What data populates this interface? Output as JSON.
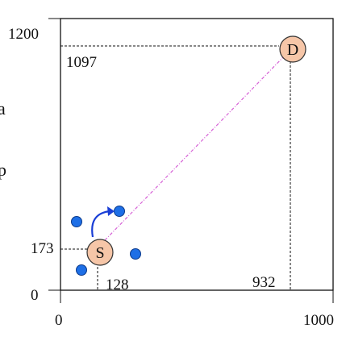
{
  "axes": {
    "x_min_label": "0",
    "x_max_label": "1000",
    "y_min_label": "0",
    "y_max_label": "1200",
    "x_range": [
      0,
      1000
    ],
    "y_range": [
      0,
      1200
    ]
  },
  "nodes": {
    "source": {
      "label": "S",
      "x": 128,
      "y": 173
    },
    "destination": {
      "label": "D",
      "x": 932,
      "y": 1097
    }
  },
  "guide_labels": {
    "source_x": "128",
    "source_y": "173",
    "destination_x": "932",
    "destination_y": "1097"
  },
  "edge_fragments": {
    "left_a": "a",
    "left_p": "p"
  },
  "colors": {
    "node_fill": "#f6c6a8",
    "neighbor_fill": "#1e6fe6",
    "arrow": "#1a3fd6",
    "route_line": "#d660d6",
    "frame": "#111111"
  }
}
